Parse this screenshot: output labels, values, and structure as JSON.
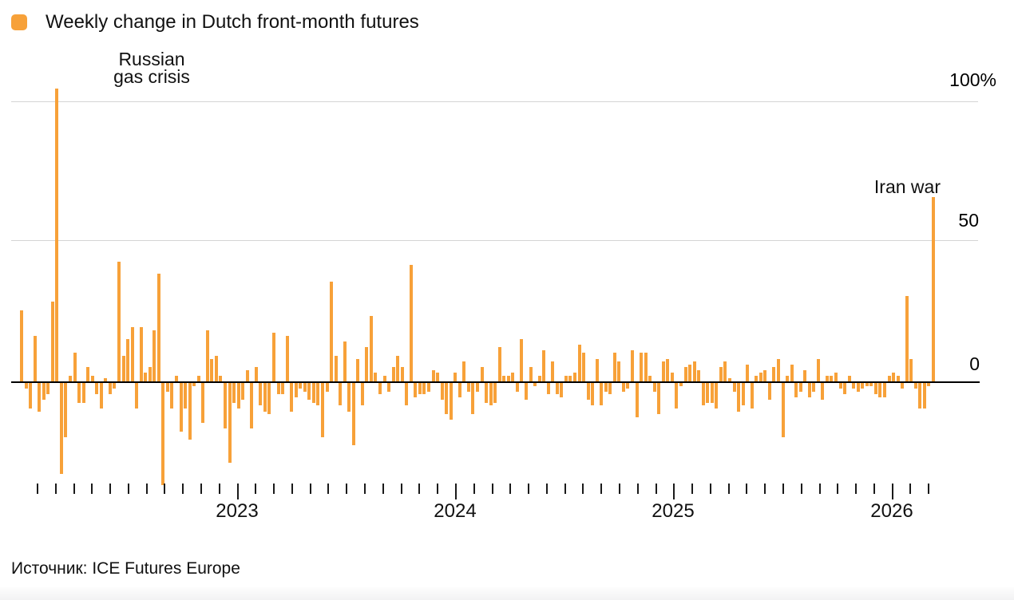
{
  "chart_data": {
    "type": "bar",
    "title": "Weekly change in Dutch front-month futures",
    "legend": {
      "label": "Weekly change in Dutch front-month futures",
      "swatch_color": "#f7a139"
    },
    "bar_color": "#f7a139",
    "unit": "percent weekly change",
    "ylim": [
      -45,
      110
    ],
    "y_gridlines": [
      0,
      50,
      100
    ],
    "y_axis": {
      "labels": [
        "100%",
        "50",
        "0"
      ]
    },
    "x_axis": {
      "year_labels": [
        "2023",
        "2024",
        "2025",
        "2026"
      ],
      "tick_style": "monthly minor ticks, long ticks at year starts"
    },
    "grid": "horizontal only",
    "legend_position": "top-left",
    "annotations": [
      {
        "text": "Russian\ngas crisis",
        "points_to": "spike of +103% in early 2022"
      },
      {
        "text": "Iran war",
        "points_to": "spike of +65% in 2026"
      }
    ],
    "values": [
      25,
      -2,
      -9,
      16,
      -10,
      -6,
      -4,
      28,
      103,
      -32,
      -19,
      2,
      10,
      -7,
      -7,
      5,
      2,
      -4,
      -9,
      1,
      -4,
      -2,
      42,
      9,
      15,
      19,
      -9,
      19,
      3,
      5,
      18,
      38,
      -36,
      -3,
      -9,
      2,
      -17,
      -9,
      -20,
      -1,
      2,
      -14,
      18,
      8,
      9,
      2,
      -16,
      -28,
      -7,
      -9,
      -6,
      4,
      -16,
      5,
      -8,
      -10,
      -11,
      17,
      -4,
      -4,
      16,
      -10,
      -5,
      -2,
      -3,
      -6,
      -7,
      -8,
      -19,
      -3,
      35,
      9,
      -8,
      14,
      -10,
      -22,
      8,
      -8,
      12,
      23,
      3,
      -4,
      2,
      -3,
      5,
      9,
      5,
      -8,
      41,
      -5,
      -4,
      -4,
      -3,
      4,
      3,
      -6,
      -11,
      -13,
      3,
      -5,
      7,
      -3,
      -11,
      -3,
      5,
      -7,
      -8,
      -7,
      12,
      2,
      2,
      3,
      -3,
      15,
      -6,
      5,
      -1,
      2,
      11,
      -4,
      7,
      -4,
      -5,
      2,
      2,
      3,
      13,
      10,
      -6,
      -8,
      8,
      -8,
      -3,
      -4,
      10,
      7,
      -3,
      -2,
      11,
      -12,
      10,
      10,
      2,
      -3,
      -11,
      7,
      8,
      3,
      -9,
      -1,
      5,
      6,
      7,
      4,
      -8,
      -7,
      -7,
      -9,
      5,
      7,
      1,
      -3,
      -10,
      -8,
      6,
      -9,
      2,
      3,
      4,
      -6,
      5,
      8,
      -19,
      2,
      6,
      -5,
      -3,
      4,
      -5,
      -3,
      8,
      -6,
      2,
      2,
      3,
      -2,
      -4,
      2,
      -2,
      -3,
      -2,
      -1,
      -1,
      -4,
      -5,
      -5,
      2,
      3,
      2,
      -2,
      30,
      8,
      -2,
      -9,
      -9,
      -1,
      65
    ]
  },
  "source": {
    "text": "Источник: ICE Futures Europe"
  }
}
